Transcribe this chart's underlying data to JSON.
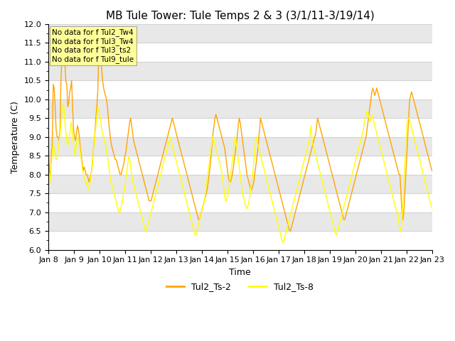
{
  "title": "MB Tule Tower: Tule Temps 2 & 3 (3/1/11-3/19/14)",
  "xlabel": "Time",
  "ylabel": "Temperature (C)",
  "ylim": [
    6.0,
    12.0
  ],
  "yticks": [
    6.0,
    6.5,
    7.0,
    7.5,
    8.0,
    8.5,
    9.0,
    9.5,
    10.0,
    10.5,
    11.0,
    11.5,
    12.0
  ],
  "xtick_labels": [
    "Jan 8",
    "Jan 9",
    "Jan 10",
    "Jan 11",
    "Jan 12",
    "Jan 13",
    "Jan 14",
    "Jan 15",
    "Jan 16",
    "Jan 17",
    "Jan 18",
    "Jan 19",
    "Jan 20",
    "Jan 21",
    "Jan 22",
    "Jan 23"
  ],
  "legend_labels": [
    "Tul2_Ts-2",
    "Tul2_Ts-8"
  ],
  "line1_color": "#FFA500",
  "line2_color": "#FFFF00",
  "nodata_texts": [
    "No data for f Tul2_Tw4",
    "No data for f Tul3_Tw4",
    "No data for f Tul3_ts2",
    "No data for f Tul9_tule"
  ],
  "nodata_box_color": "#FFFF99",
  "ts2_values": [
    8.9,
    8.1,
    8.0,
    8.5,
    8.8,
    10.4,
    10.3,
    9.8,
    9.2,
    9.0,
    9.0,
    8.9,
    9.2,
    10.5,
    11.1,
    11.3,
    11.6,
    11.0,
    10.5,
    10.4,
    9.8,
    9.9,
    10.2,
    10.3,
    10.5,
    9.8,
    9.2,
    9.0,
    8.9,
    9.1,
    9.3,
    9.2,
    9.0,
    8.7,
    8.5,
    8.3,
    8.1,
    8.2,
    8.1,
    8.0,
    8.0,
    7.9,
    7.8,
    7.9,
    8.0,
    8.2,
    8.5,
    8.8,
    9.1,
    9.5,
    9.8,
    10.2,
    11.2,
    11.4,
    11.2,
    10.8,
    10.5,
    10.3,
    10.2,
    10.1,
    10.0,
    9.8,
    9.5,
    9.2,
    9.0,
    8.8,
    8.7,
    8.6,
    8.5,
    8.4,
    8.4,
    8.3,
    8.2,
    8.1,
    8.0,
    8.0,
    8.1,
    8.2,
    8.3,
    8.5,
    8.6,
    8.8,
    9.0,
    9.2,
    9.4,
    9.5,
    9.3,
    9.1,
    8.9,
    8.8,
    8.7,
    8.6,
    8.5,
    8.4,
    8.3,
    8.2,
    8.1,
    8.0,
    7.9,
    7.8,
    7.7,
    7.6,
    7.5,
    7.4,
    7.3,
    7.3,
    7.3,
    7.4,
    7.5,
    7.6,
    7.7,
    7.8,
    7.9,
    8.0,
    8.1,
    8.2,
    8.3,
    8.4,
    8.5,
    8.6,
    8.7,
    8.8,
    8.9,
    9.0,
    9.1,
    9.2,
    9.3,
    9.4,
    9.5,
    9.4,
    9.3,
    9.2,
    9.1,
    9.0,
    8.9,
    8.8,
    8.7,
    8.6,
    8.5,
    8.4,
    8.3,
    8.2,
    8.1,
    8.0,
    7.9,
    7.8,
    7.7,
    7.6,
    7.5,
    7.4,
    7.3,
    7.2,
    7.1,
    7.0,
    6.9,
    6.8,
    6.8,
    6.9,
    7.0,
    7.1,
    7.2,
    7.3,
    7.4,
    7.5,
    7.6,
    7.8,
    8.0,
    8.2,
    8.5,
    8.8,
    9.1,
    9.3,
    9.5,
    9.6,
    9.5,
    9.4,
    9.3,
    9.2,
    9.1,
    9.0,
    8.9,
    8.8,
    8.7,
    8.5,
    8.3,
    8.1,
    7.9,
    7.8,
    7.8,
    7.9,
    8.0,
    8.2,
    8.4,
    8.6,
    8.8,
    9.0,
    9.3,
    9.5,
    9.4,
    9.2,
    9.0,
    8.8,
    8.6,
    8.4,
    8.2,
    8.0,
    7.9,
    7.8,
    7.7,
    7.6,
    7.6,
    7.7,
    7.8,
    8.0,
    8.2,
    8.4,
    8.6,
    8.9,
    9.2,
    9.5,
    9.4,
    9.3,
    9.2,
    9.1,
    9.0,
    8.9,
    8.8,
    8.7,
    8.6,
    8.5,
    8.4,
    8.3,
    8.2,
    8.1,
    8.0,
    7.9,
    7.8,
    7.7,
    7.6,
    7.5,
    7.4,
    7.3,
    7.2,
    7.1,
    7.0,
    6.9,
    6.8,
    6.7,
    6.6,
    6.5,
    6.5,
    6.6,
    6.7,
    6.8,
    6.9,
    7.0,
    7.1,
    7.2,
    7.3,
    7.4,
    7.5,
    7.6,
    7.7,
    7.8,
    7.9,
    8.0,
    8.1,
    8.2,
    8.3,
    8.4,
    8.5,
    8.6,
    8.7,
    8.8,
    8.9,
    9.0,
    9.1,
    9.3,
    9.5,
    9.4,
    9.3,
    9.2,
    9.1,
    9.0,
    8.9,
    8.8,
    8.7,
    8.6,
    8.5,
    8.4,
    8.3,
    8.2,
    8.1,
    8.0,
    7.9,
    7.8,
    7.7,
    7.6,
    7.5,
    7.4,
    7.3,
    7.2,
    7.1,
    7.0,
    6.9,
    6.8,
    6.8,
    6.9,
    7.0,
    7.1,
    7.2,
    7.3,
    7.4,
    7.5,
    7.6,
    7.7,
    7.8,
    7.9,
    8.0,
    8.1,
    8.2,
    8.3,
    8.4,
    8.5,
    8.6,
    8.7,
    8.8,
    8.9,
    9.0,
    9.2,
    9.4,
    9.6,
    9.8,
    10.0,
    10.2,
    10.3,
    10.2,
    10.1,
    10.2,
    10.3,
    10.2,
    10.1,
    10.0,
    9.9,
    9.8,
    9.7,
    9.6,
    9.5,
    9.4,
    9.3,
    9.2,
    9.1,
    9.0,
    8.9,
    8.8,
    8.7,
    8.6,
    8.5,
    8.4,
    8.3,
    8.2,
    8.1,
    8.0,
    8.0,
    7.5,
    7.0,
    6.8,
    7.0,
    7.5,
    8.0,
    8.5,
    9.0,
    9.5,
    10.0,
    10.1,
    10.2,
    10.1,
    10.0,
    9.9,
    9.8,
    9.7,
    9.6,
    9.5,
    9.4,
    9.3,
    9.2,
    9.1,
    9.0,
    8.9,
    8.8,
    8.7,
    8.6,
    8.5,
    8.4,
    8.3,
    8.2,
    8.1
  ],
  "ts8_values": [
    8.1,
    7.9,
    7.8,
    8.3,
    8.5,
    8.8,
    8.7,
    8.5,
    8.4,
    8.4,
    8.6,
    8.8,
    9.0,
    9.3,
    9.6,
    9.8,
    9.9,
    9.5,
    9.2,
    9.0,
    8.8,
    8.8,
    9.0,
    9.2,
    9.4,
    9.2,
    8.9,
    8.7,
    8.5,
    8.7,
    8.9,
    9.0,
    8.9,
    8.7,
    8.5,
    8.3,
    8.1,
    8.0,
    7.9,
    7.8,
    7.8,
    7.7,
    7.6,
    7.7,
    7.8,
    8.0,
    8.2,
    8.5,
    8.8,
    9.1,
    9.3,
    9.6,
    9.8,
    9.7,
    9.6,
    9.4,
    9.2,
    9.1,
    9.0,
    8.9,
    8.8,
    8.7,
    8.5,
    8.3,
    8.1,
    7.9,
    7.8,
    7.7,
    7.6,
    7.5,
    7.4,
    7.3,
    7.2,
    7.1,
    7.0,
    7.0,
    7.1,
    7.2,
    7.3,
    7.5,
    7.6,
    7.8,
    8.0,
    8.2,
    8.4,
    8.5,
    8.3,
    8.1,
    7.9,
    7.8,
    7.7,
    7.6,
    7.5,
    7.4,
    7.3,
    7.2,
    7.1,
    7.0,
    6.9,
    6.8,
    6.7,
    6.6,
    6.5,
    6.5,
    6.6,
    6.7,
    6.8,
    6.9,
    7.0,
    7.1,
    7.2,
    7.3,
    7.4,
    7.5,
    7.6,
    7.7,
    7.8,
    7.9,
    8.0,
    8.1,
    8.2,
    8.3,
    8.4,
    8.5,
    8.6,
    8.7,
    8.8,
    8.9,
    9.0,
    8.9,
    8.8,
    8.7,
    8.6,
    8.5,
    8.4,
    8.3,
    8.2,
    8.1,
    8.0,
    7.9,
    7.8,
    7.7,
    7.6,
    7.5,
    7.4,
    7.3,
    7.2,
    7.1,
    7.0,
    6.9,
    6.8,
    6.7,
    6.6,
    6.5,
    6.4,
    6.4,
    6.5,
    6.6,
    6.7,
    6.8,
    6.9,
    7.0,
    7.1,
    7.2,
    7.3,
    7.5,
    7.7,
    7.9,
    8.1,
    8.3,
    8.5,
    8.7,
    8.9,
    9.0,
    8.9,
    8.8,
    8.7,
    8.6,
    8.5,
    8.4,
    8.3,
    8.2,
    8.1,
    7.9,
    7.7,
    7.5,
    7.3,
    7.3,
    7.4,
    7.5,
    7.7,
    7.9,
    8.1,
    8.3,
    8.5,
    8.8,
    9.0,
    8.9,
    8.7,
    8.5,
    8.3,
    8.1,
    7.9,
    7.7,
    7.5,
    7.4,
    7.3,
    7.2,
    7.1,
    7.1,
    7.2,
    7.3,
    7.5,
    7.7,
    7.9,
    8.1,
    8.4,
    8.7,
    9.0,
    8.9,
    8.8,
    8.7,
    8.6,
    8.5,
    8.4,
    8.3,
    8.2,
    8.1,
    8.0,
    7.9,
    7.8,
    7.7,
    7.6,
    7.5,
    7.4,
    7.3,
    7.2,
    7.1,
    7.0,
    6.9,
    6.8,
    6.7,
    6.6,
    6.5,
    6.4,
    6.3,
    6.2,
    6.2,
    6.3,
    6.4,
    6.5,
    6.6,
    6.7,
    6.8,
    6.9,
    7.0,
    7.1,
    7.2,
    7.3,
    7.4,
    7.5,
    7.6,
    7.7,
    7.8,
    7.9,
    8.0,
    8.1,
    8.2,
    8.3,
    8.4,
    8.5,
    8.6,
    8.7,
    8.8,
    8.9,
    9.1,
    9.3,
    8.9,
    8.8,
    8.7,
    8.6,
    8.5,
    8.4,
    8.3,
    8.2,
    8.1,
    8.0,
    7.9,
    7.8,
    7.7,
    7.6,
    7.5,
    7.4,
    7.3,
    7.2,
    7.1,
    7.0,
    6.9,
    6.8,
    6.7,
    6.6,
    6.5,
    6.4,
    6.4,
    6.5,
    6.6,
    6.7,
    6.8,
    6.9,
    7.0,
    7.1,
    7.2,
    7.3,
    7.4,
    7.5,
    7.6,
    7.7,
    7.8,
    7.9,
    8.0,
    8.1,
    8.2,
    8.3,
    8.4,
    8.5,
    8.6,
    8.7,
    8.8,
    8.9,
    9.0,
    9.1,
    9.2,
    9.4,
    9.5,
    9.6,
    9.7,
    9.6,
    9.5,
    9.4,
    9.5,
    9.6,
    9.5,
    9.4,
    9.3,
    9.2,
    9.1,
    9.0,
    8.9,
    8.8,
    8.7,
    8.6,
    8.5,
    8.4,
    8.3,
    8.2,
    8.1,
    8.0,
    7.9,
    7.8,
    7.7,
    7.6,
    7.5,
    7.4,
    7.3,
    7.2,
    7.1,
    7.0,
    7.0,
    6.8,
    6.6,
    6.5,
    6.6,
    7.0,
    7.5,
    8.0,
    8.5,
    9.0,
    9.4,
    9.5,
    9.5,
    9.4,
    9.3,
    9.2,
    9.1,
    9.0,
    8.9,
    8.8,
    8.7,
    8.6,
    8.5,
    8.4,
    8.3,
    8.2,
    8.1,
    8.0,
    7.9,
    7.8,
    7.7,
    7.6,
    7.5,
    7.4,
    7.3,
    7.2,
    7.1
  ]
}
